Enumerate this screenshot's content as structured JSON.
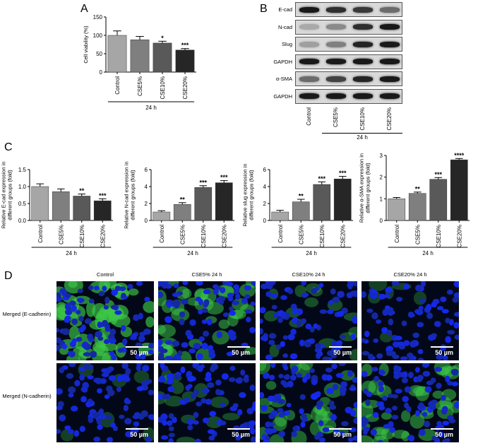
{
  "panels": {
    "a": "A",
    "b": "B",
    "c": "C",
    "d": "D"
  },
  "charts_common": {
    "categories": [
      "Control",
      "CSE5%",
      "CSE10%",
      "CSE20%"
    ],
    "group_label": "24 h",
    "bar_colors": [
      "#a6a6a6",
      "#7f7f7f",
      "#595959",
      "#262626"
    ]
  },
  "chart_data": [
    {
      "id": "A",
      "type": "bar",
      "categories": [
        "Control",
        "CSE5%",
        "CSE10%",
        "CSE20%"
      ],
      "values": [
        100,
        88,
        79,
        60
      ],
      "errors": [
        12,
        9,
        5,
        4
      ],
      "significance": [
        "",
        "",
        "*",
        "***"
      ],
      "ylabel": "Cell viability (%)",
      "ylim": [
        0,
        150
      ],
      "yticks": [
        "0",
        "50",
        "100",
        "150"
      ],
      "group_label": "24 h"
    },
    {
      "id": "C1",
      "type": "bar",
      "categories": [
        "Control",
        "CSE5%",
        "CSE10%",
        "CSE20%"
      ],
      "values": [
        1.0,
        0.85,
        0.72,
        0.58
      ],
      "errors": [
        0.08,
        0.08,
        0.06,
        0.06
      ],
      "significance": [
        "",
        "",
        "**",
        "***"
      ],
      "ylabel": "Relative E-cad expression in different groups (fold)",
      "ylim": [
        0,
        1.5
      ],
      "yticks": [
        "0.0",
        "0.5",
        "1.0",
        "1.5"
      ],
      "group_label": "24 h"
    },
    {
      "id": "C2",
      "type": "bar",
      "categories": [
        "Control",
        "CSE5%",
        "CSE10%",
        "CSE20%"
      ],
      "values": [
        1.0,
        1.9,
        3.9,
        4.45
      ],
      "errors": [
        0.15,
        0.2,
        0.2,
        0.25
      ],
      "significance": [
        "",
        "**",
        "***",
        "***"
      ],
      "ylabel": "Relative N-cad expression in different groups (fold)",
      "ylim": [
        0,
        6
      ],
      "yticks": [
        "0",
        "2",
        "4",
        "6"
      ],
      "group_label": "24 h"
    },
    {
      "id": "C3",
      "type": "bar",
      "categories": [
        "Control",
        "CSE5%",
        "CSE10%",
        "CSE20%"
      ],
      "values": [
        1.0,
        2.2,
        4.25,
        4.9
      ],
      "errors": [
        0.2,
        0.3,
        0.3,
        0.3
      ],
      "significance": [
        "",
        "**",
        "***",
        "***"
      ],
      "ylabel": "Relative slug expression in different groups (fold)",
      "ylim": [
        0,
        6
      ],
      "yticks": [
        "0",
        "2",
        "4",
        "6"
      ],
      "group_label": "24 h"
    },
    {
      "id": "C4",
      "type": "bar",
      "categories": [
        "Control",
        "CSE5%",
        "CSE10%",
        "CSE20%"
      ],
      "values": [
        1.0,
        1.25,
        1.9,
        2.8
      ],
      "errors": [
        0.06,
        0.06,
        0.08,
        0.06
      ],
      "significance": [
        "",
        "**",
        "***",
        "****"
      ],
      "ylabel": "Relative α-SMA expression in different groups (fold)",
      "ylim": [
        0,
        3
      ],
      "yticks": [
        "0",
        "1",
        "2",
        "3"
      ],
      "group_label": "24 h"
    }
  ],
  "western_blot": {
    "lanes": [
      "Control",
      "CSE5%",
      "CSE10%",
      "CSE20%"
    ],
    "group_label": "24 h",
    "rows": [
      {
        "label": "E-cad",
        "intensity": [
          0.95,
          0.85,
          0.8,
          0.55
        ]
      },
      {
        "label": "N-cad",
        "intensity": [
          0.25,
          0.4,
          0.85,
          0.95
        ]
      },
      {
        "label": "Slug",
        "intensity": [
          0.3,
          0.45,
          0.9,
          0.95
        ]
      },
      {
        "label": "GAPDH",
        "intensity": [
          0.95,
          0.95,
          0.95,
          0.95
        ]
      },
      {
        "label": "α-SMA",
        "intensity": [
          0.55,
          0.75,
          0.9,
          0.95
        ]
      },
      {
        "label": "GAPDH",
        "intensity": [
          0.95,
          0.95,
          0.95,
          0.95
        ]
      }
    ]
  },
  "micrographs": {
    "columns": [
      "Control",
      "CSE5% 24 h",
      "CSE10% 24 h",
      "CSE20% 24 h"
    ],
    "rows": [
      {
        "label": "Merged (E-cadherin)",
        "green": [
          0.9,
          0.6,
          0.25,
          0.1
        ]
      },
      {
        "label": "Merged (N-cadherin)",
        "green": [
          0.1,
          0.2,
          0.5,
          0.6
        ]
      }
    ],
    "scale_bar": "50 µm"
  }
}
